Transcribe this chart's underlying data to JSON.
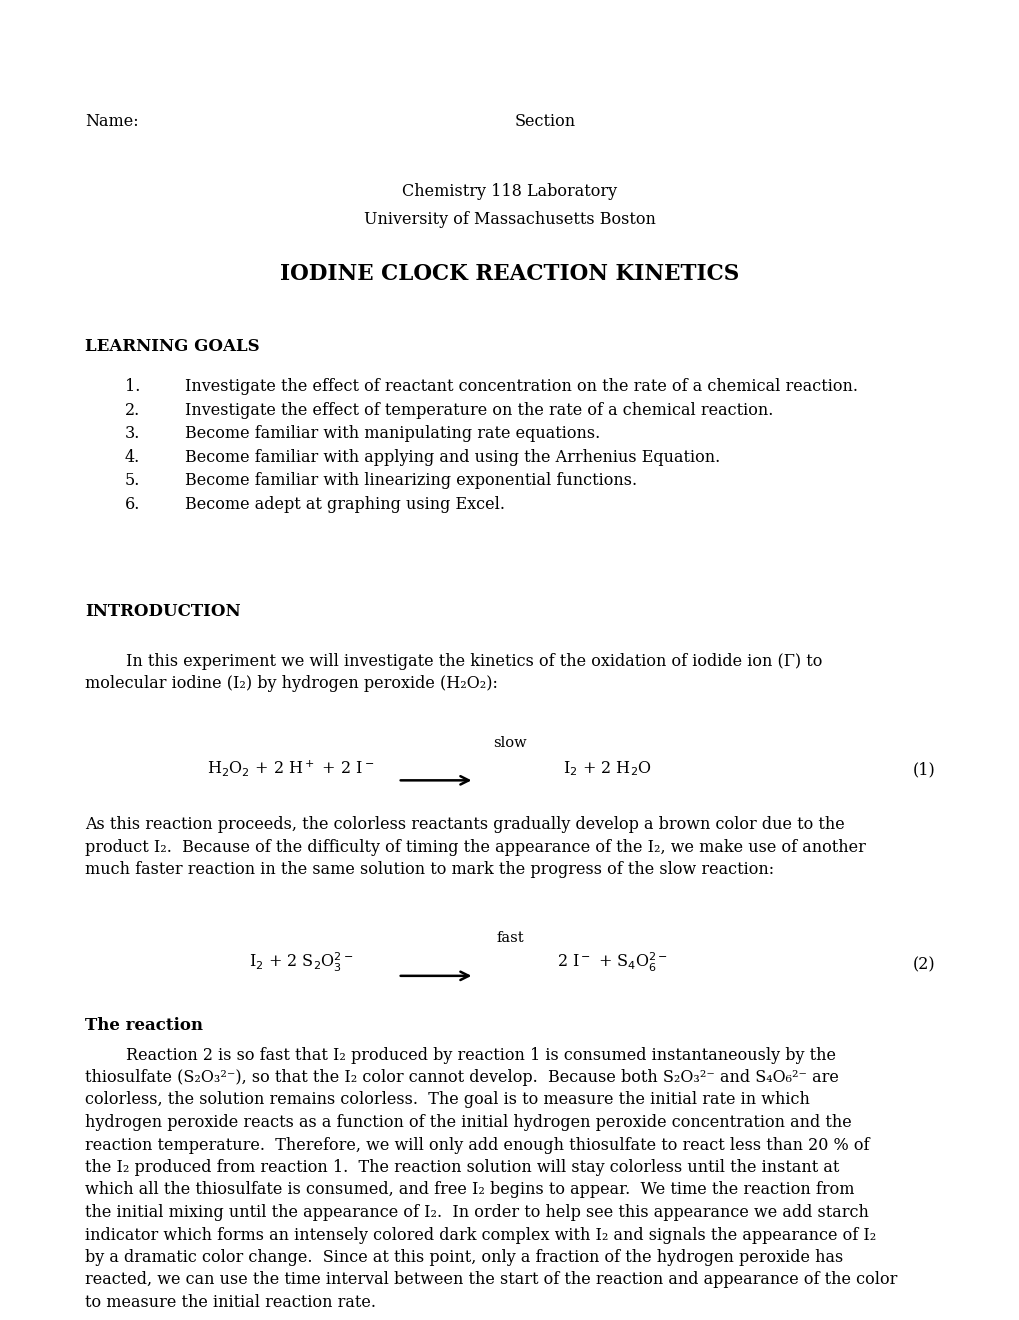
{
  "bg_color": "#ffffff",
  "title": "IODINE CLOCK REACTION KINETICS",
  "institution_line1": "Chemistry 118 Laboratory",
  "institution_line2": "University of Massachusetts Boston",
  "section_learning_goals": "LEARNING GOALS",
  "learning_goals": [
    "Investigate the effect of reactant concentration on the rate of a chemical reaction.",
    "Investigate the effect of temperature on the rate of a chemical reaction.",
    "Become familiar with manipulating rate equations.",
    "Become familiar with applying and using the Arrhenius Equation.",
    "Become familiar with linearizing exponential functions.",
    "Become adept at graphing using Excel."
  ],
  "section_introduction": "INTRODUCTION",
  "intro_line1": "        In this experiment we will investigate the kinetics of the oxidation of iodide ion (Γ) to",
  "intro_line2": "molecular iodine (I₂) by hydrogen peroxide (H₂O₂):",
  "eq1_left": "H$_2$O$_2$ + 2 H$^+$ + 2 I$^-$",
  "eq1_label_slow": "slow",
  "eq1_right": "I$_2$ + 2 H$_2$O",
  "eq1_number": "(1)",
  "para2_lines": [
    "As this reaction proceeds, the colorless reactants gradually develop a brown color due to the",
    "product I₂.  Because of the difficulty of timing the appearance of the I₂, we make use of another",
    "much faster reaction in the same solution to mark the progress of the slow reaction:"
  ],
  "eq2_left": "I$_2$ + 2 S$_2$O$_3^{2-}$",
  "eq2_label_fast": "fast",
  "eq2_right": "2 I$^-$ + S$_4$O$_6^{2-}$",
  "eq2_number": "(2)",
  "section_reaction": "The reaction",
  "rxn_lines": [
    "        Reaction 2 is so fast that I₂ produced by reaction 1 is consumed instantaneously by the",
    "thiosulfate (S₂O₃²⁻), so that the I₂ color cannot develop.  Because both S₂O₃²⁻ and S₄O₆²⁻ are",
    "colorless, the solution remains colorless.  The goal is to measure the initial rate in which",
    "hydrogen peroxide reacts as a function of the initial hydrogen peroxide concentration and the",
    "reaction temperature.  Therefore, we will only add enough thiosulfate to react less than 20 % of",
    "the I₂ produced from reaction 1.  The reaction solution will stay colorless until the instant at",
    "which all the thiosulfate is consumed, and free I₂ begins to appear.  We time the reaction from",
    "the initial mixing until the appearance of I₂.  In order to help see this appearance we add starch",
    "indicator which forms an intensely colored dark complex with I₂ and signals the appearance of I₂",
    "by a dramatic color change.  Since at this point, only a fraction of the hydrogen peroxide has",
    "reacted, we can use the time interval between the start of the reaction and appearance of the color",
    "to measure the initial reaction rate."
  ]
}
